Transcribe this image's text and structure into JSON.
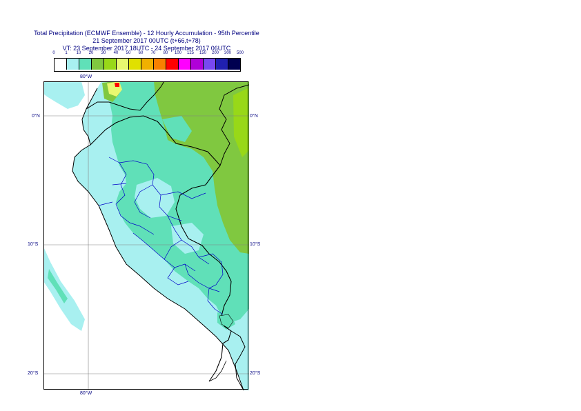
{
  "title": {
    "line1": "Total Precipitation (ECMWF Ensemble) - 12 Hourly Accumulation - 95th Percentile",
    "line2": "21 September 2017 00UTC (t+66,t+78)",
    "line3": "VT: 23 September 2017 18UTC - 24 September 2017 06UTC"
  },
  "legend": {
    "ticks": [
      "0",
      "1",
      "10",
      "20",
      "30",
      "40",
      "50",
      "60",
      "70",
      "80",
      "100",
      "125",
      "150",
      "200",
      "300",
      "500"
    ],
    "colors": [
      "#ffffff",
      "#a8f0f0",
      "#60e0b8",
      "#80c840",
      "#98d818",
      "#e8f870",
      "#e0e000",
      "#f0b000",
      "#f88000",
      "#ff0000",
      "#ff00ff",
      "#b000d8",
      "#7848f0",
      "#2020b0",
      "#000050"
    ]
  },
  "map": {
    "axis": {
      "top_lon": "80°W",
      "bottom_lon": "80°W",
      "lat_0_left": "0°N",
      "lat_0_right": "0°N",
      "lat_10_left": "10°S",
      "lat_10_right": "10°S",
      "lat_20_left": "20°S",
      "lat_20_right": "20°S"
    },
    "colors": {
      "ocean": "#ffffff",
      "light": "#a8f0f0",
      "medium": "#60e0b8",
      "green": "#80c840",
      "yellowgreen": "#98d818",
      "yellow": "#e8f870",
      "red": "#ff0000",
      "country_border": "#000000",
      "region_border": "#0000c8",
      "grid": "#808080"
    }
  }
}
